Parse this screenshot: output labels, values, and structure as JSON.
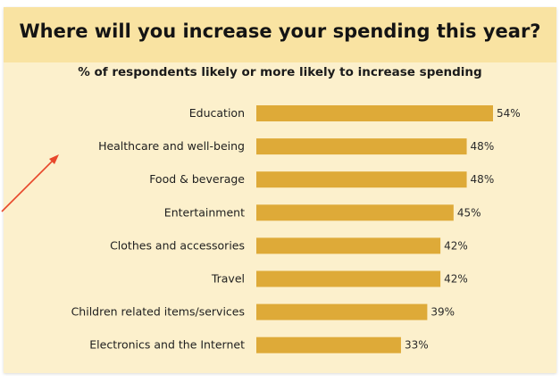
{
  "chart_data": {
    "type": "bar",
    "orientation": "horizontal",
    "title": "Where will you increase your spending this year?",
    "subtitle": "% of respondents likely or more likely to increase spending",
    "categories": [
      "Education",
      "Healthcare and well-being",
      "Food & beverage",
      "Entertainment",
      "Clothes and accessories",
      "Travel",
      "Children related items/services",
      "Electronics and the Internet"
    ],
    "values": [
      54,
      48,
      48,
      45,
      42,
      42,
      39,
      33
    ],
    "value_labels": [
      "54%",
      "48%",
      "48%",
      "45%",
      "42%",
      "42%",
      "39%",
      "33%"
    ],
    "xlim": [
      0,
      54
    ],
    "grid": false,
    "legend": "none"
  },
  "colors": {
    "bar": "#deaa38",
    "panel": "#fcf0cc",
    "title_band": "#f9e3a2",
    "annotation_arrow": "#e8472b"
  }
}
